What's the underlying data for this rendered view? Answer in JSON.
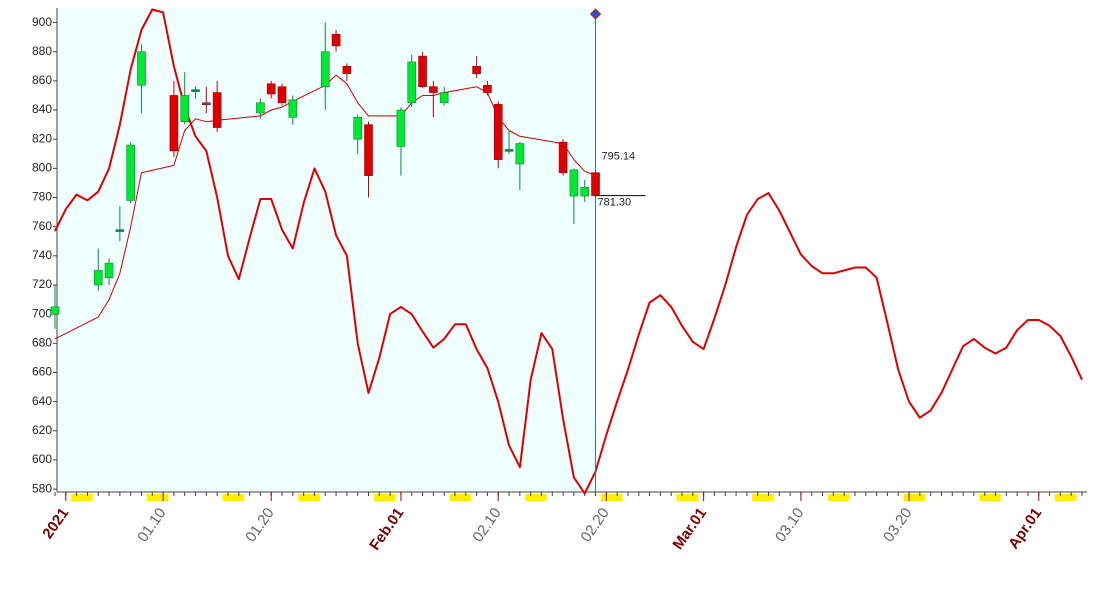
{
  "chart_data": {
    "type": "candlestick",
    "xlim": [
      "2020-12-31",
      "2021-04-05"
    ],
    "ylim": [
      578,
      910
    ],
    "yticks": [
      580,
      600,
      620,
      640,
      660,
      680,
      700,
      720,
      740,
      760,
      780,
      800,
      820,
      840,
      860,
      880,
      900
    ],
    "xticks": [
      {
        "value": "2021-01-01",
        "label": "2021"
      },
      {
        "value": "2021-01-10",
        "label": "01.10"
      },
      {
        "value": "2021-01-20",
        "label": "01.20"
      },
      {
        "value": "2021-02-01",
        "label": "Feb.01"
      },
      {
        "value": "2021-02-10",
        "label": "02.10"
      },
      {
        "value": "2021-02-20",
        "label": "02.20"
      },
      {
        "value": "2021-03-01",
        "label": "Mar.01"
      },
      {
        "value": "2021-03-10",
        "label": "03.10"
      },
      {
        "value": "2021-03-20",
        "label": "03.20"
      },
      {
        "value": "2021-04-01",
        "label": "Apr.01"
      }
    ],
    "up_color": "#00e832",
    "down_color": "#e00000",
    "candles": {
      "x": [
        "2020-12-31",
        "2021-01-04",
        "2021-01-05",
        "2021-01-06",
        "2021-01-07",
        "2021-01-08",
        "2021-01-11",
        "2021-01-12",
        "2021-01-13",
        "2021-01-14",
        "2021-01-15",
        "2021-01-19",
        "2021-01-20",
        "2021-01-21",
        "2021-01-22",
        "2021-01-25",
        "2021-01-26",
        "2021-01-27",
        "2021-01-28",
        "2021-01-29",
        "2021-02-01",
        "2021-02-02",
        "2021-02-03",
        "2021-02-04",
        "2021-02-05",
        "2021-02-08",
        "2021-02-09",
        "2021-02-10",
        "2021-02-11",
        "2021-02-12",
        "2021-02-16",
        "2021-02-17",
        "2021-02-18",
        "2021-02-19"
      ],
      "open": [
        700,
        720,
        725,
        757,
        778,
        857,
        850,
        832,
        853,
        845,
        852,
        838,
        858,
        856,
        835,
        856,
        892,
        870,
        820,
        830,
        815,
        845,
        877,
        856,
        845,
        870,
        857,
        844,
        812,
        803,
        818,
        781,
        781,
        797
      ],
      "high": [
        720,
        745,
        738,
        774,
        818,
        885,
        860,
        866,
        856,
        856,
        860,
        848,
        860,
        858,
        850,
        900,
        895,
        872,
        837,
        832,
        842,
        878,
        880,
        860,
        856,
        877,
        860,
        846,
        826,
        818,
        820,
        800,
        792,
        798
      ],
      "low": [
        690,
        716,
        720,
        750,
        776,
        838,
        808,
        830,
        848,
        838,
        825,
        834,
        848,
        843,
        830,
        840,
        880,
        860,
        810,
        780,
        795,
        842,
        855,
        835,
        843,
        862,
        850,
        800,
        810,
        785,
        795,
        762,
        777,
        780
      ],
      "close": [
        705,
        730,
        735,
        758,
        816,
        880,
        812,
        850,
        854,
        844,
        828,
        845,
        851,
        845,
        847,
        880,
        884,
        865,
        835,
        795,
        840,
        873,
        856,
        852,
        852,
        865,
        852,
        806,
        813,
        817,
        797,
        799,
        787,
        781.3
      ]
    },
    "moving_average": {
      "color": "#cc0000",
      "values": [
        683,
        698,
        710,
        728,
        760,
        797,
        802,
        826,
        834,
        832,
        833,
        836,
        840,
        842,
        846,
        857,
        864,
        858,
        845,
        836,
        836,
        845,
        850,
        850,
        852,
        856,
        852,
        835,
        826,
        822,
        817,
        806,
        798,
        795.14
      ]
    },
    "forecast": {
      "color": "#dd0000",
      "x": [
        "2020-12-31",
        "2021-01-01",
        "2021-01-02",
        "2021-01-03",
        "2021-01-04",
        "2021-01-05",
        "2021-01-06",
        "2021-01-07",
        "2021-01-08",
        "2021-01-09",
        "2021-01-10",
        "2021-01-11",
        "2021-01-12",
        "2021-01-13",
        "2021-01-14",
        "2021-01-15",
        "2021-01-16",
        "2021-01-17",
        "2021-01-18",
        "2021-01-19",
        "2021-01-20",
        "2021-01-21",
        "2021-01-22",
        "2021-01-23",
        "2021-01-24",
        "2021-01-25",
        "2021-01-26",
        "2021-01-27",
        "2021-01-28",
        "2021-01-29",
        "2021-01-30",
        "2021-01-31",
        "2021-02-01",
        "2021-02-02",
        "2021-02-03",
        "2021-02-04",
        "2021-02-05",
        "2021-02-06",
        "2021-02-07",
        "2021-02-08",
        "2021-02-09",
        "2021-02-10",
        "2021-02-11",
        "2021-02-12",
        "2021-02-13",
        "2021-02-14",
        "2021-02-15",
        "2021-02-16",
        "2021-02-17",
        "2021-02-18",
        "2021-02-19",
        "2021-02-20",
        "2021-02-21",
        "2021-02-22",
        "2021-02-23",
        "2021-02-24",
        "2021-02-25",
        "2021-02-26",
        "2021-02-27",
        "2021-02-28",
        "2021-03-01",
        "2021-03-02",
        "2021-03-03",
        "2021-03-04",
        "2021-03-05",
        "2021-03-06",
        "2021-03-07",
        "2021-03-08",
        "2021-03-09",
        "2021-03-10",
        "2021-03-11",
        "2021-03-12",
        "2021-03-13",
        "2021-03-14",
        "2021-03-15",
        "2021-03-16",
        "2021-03-17",
        "2021-03-18",
        "2021-03-19",
        "2021-03-20",
        "2021-03-21",
        "2021-03-22",
        "2021-03-23",
        "2021-03-24",
        "2021-03-25",
        "2021-03-26",
        "2021-03-27",
        "2021-03-28",
        "2021-03-29",
        "2021-03-30",
        "2021-03-31",
        "2021-04-01",
        "2021-04-02",
        "2021-04-03",
        "2021-04-04",
        "2021-04-05"
      ],
      "values": [
        757,
        772,
        782,
        778,
        784,
        800,
        830,
        868,
        895,
        909,
        907,
        870,
        842,
        822,
        812,
        780,
        740,
        724,
        752,
        779,
        779,
        758,
        745,
        776,
        800,
        784,
        754,
        740,
        680,
        646,
        670,
        700,
        705,
        700,
        688,
        677,
        683,
        693,
        693,
        676,
        663,
        640,
        610,
        595,
        655,
        687,
        676,
        628,
        588,
        577,
        592,
        617,
        640,
        662,
        686,
        708,
        713,
        705,
        692,
        681,
        676,
        697,
        720,
        746,
        768,
        779,
        783,
        771,
        756,
        741,
        733,
        728,
        728,
        730,
        732,
        732,
        725,
        694,
        662,
        640,
        629,
        634,
        646,
        662,
        678,
        683,
        677,
        673,
        677,
        689,
        696,
        696,
        692,
        685,
        671,
        655
      ]
    },
    "markers": [
      795.14,
      {
        "value": 781.3,
        "label": "781.30"
      }
    ]
  }
}
